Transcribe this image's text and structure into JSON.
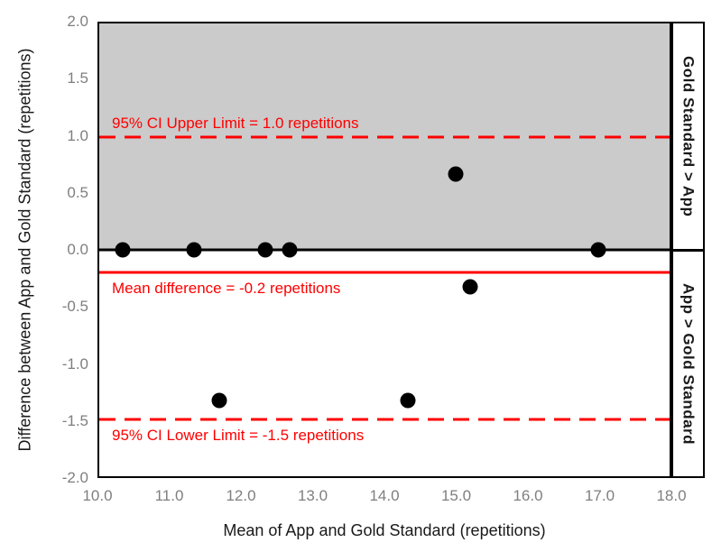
{
  "chart_data": {
    "type": "scatter",
    "title": "",
    "xlabel": "Mean of App and Gold Standard (repetitions)",
    "ylabel": "Difference between App and Gold Standard (repetitions)",
    "xlim": [
      10.0,
      18.0
    ],
    "ylim": [
      -2.0,
      2.0
    ],
    "grid": false,
    "legend": false,
    "x_tick_labels": [
      "10.0",
      "11.0",
      "12.0",
      "13.0",
      "14.0",
      "15.0",
      "16.0",
      "17.0",
      "18.0"
    ],
    "x_tick_values": [
      10.0,
      11.0,
      12.0,
      13.0,
      14.0,
      15.0,
      16.0,
      17.0,
      18.0
    ],
    "y_tick_labels": [
      "2.0",
      "1.5",
      "1.0",
      "0.5",
      "0.0",
      "-0.5",
      "-1.0",
      "-1.5",
      "-2.0"
    ],
    "y_tick_values": [
      2.0,
      1.5,
      1.0,
      0.5,
      0.0,
      -0.5,
      -1.0,
      -1.5,
      -2.0
    ],
    "points": [
      {
        "x": 10.33,
        "y": 0.0
      },
      {
        "x": 11.33,
        "y": 0.0
      },
      {
        "x": 12.33,
        "y": 0.0
      },
      {
        "x": 12.67,
        "y": 0.0
      },
      {
        "x": 15.0,
        "y": 0.67
      },
      {
        "x": 17.0,
        "y": 0.0
      },
      {
        "x": 15.2,
        "y": -0.33
      },
      {
        "x": 11.68,
        "y": -1.33
      },
      {
        "x": 14.33,
        "y": -1.33
      }
    ],
    "reference_lines": [
      {
        "value": 1.0,
        "style": "dashed",
        "color": "#FF0000",
        "label": "95% CI Upper Limit = 1.0 repetitions",
        "label_side": "above"
      },
      {
        "value": 0.0,
        "style": "solid",
        "color": "#000000",
        "label": "",
        "label_side": "none"
      },
      {
        "value": -0.2,
        "style": "solid",
        "color": "#FF0000",
        "label": "Mean difference = -0.2 repetitions",
        "label_side": "below"
      },
      {
        "value": -1.5,
        "style": "dashed",
        "color": "#FF0000",
        "label": "95% CI Lower Limit = -1.5 repetitions",
        "label_side": "below"
      }
    ],
    "shaded_region": {
      "from": 0.0,
      "to": 2.0,
      "color": "#CBCBCB"
    },
    "side_labels": {
      "top": "Gold Standard > App",
      "bottom": "App > Gold Standard"
    },
    "colors": {
      "point": "#000000",
      "annotation": "#FF0000",
      "tick_label": "#7F7F7F",
      "axis_title": "#1A1A1A",
      "shade": "#CBCBCB"
    }
  }
}
